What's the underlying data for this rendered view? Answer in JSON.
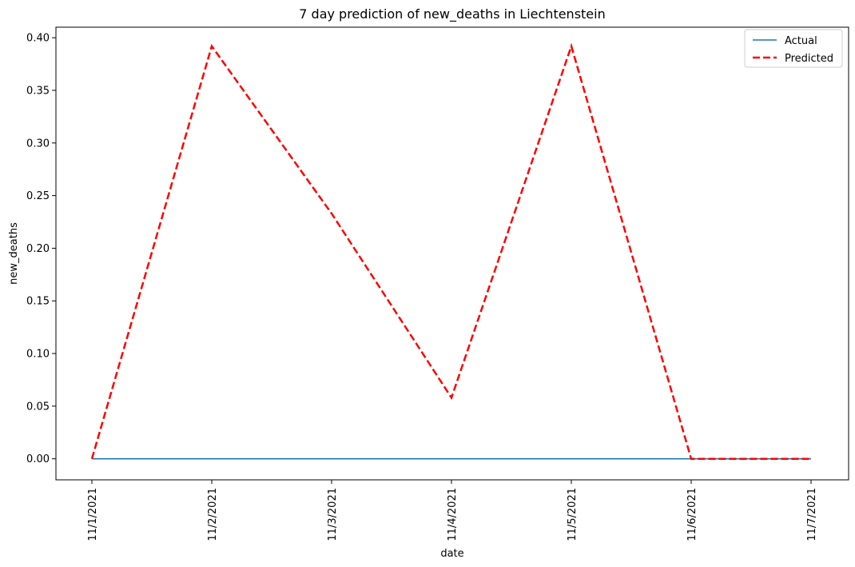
{
  "chart_data": {
    "type": "line",
    "title": "7 day prediction of new_deaths in Liechtenstein",
    "xlabel": "date",
    "ylabel": "new_deaths",
    "x": [
      "11/1/2021",
      "11/2/2021",
      "11/3/2021",
      "11/4/2021",
      "11/5/2021",
      "11/6/2021",
      "11/7/2021"
    ],
    "yticks": [
      "0.00",
      "0.05",
      "0.10",
      "0.15",
      "0.20",
      "0.25",
      "0.30",
      "0.35",
      "0.40"
    ],
    "ylim": [
      -0.02,
      0.41
    ],
    "grid": false,
    "legend_position": "top-right",
    "series": [
      {
        "name": "Actual",
        "values": [
          0,
          0,
          0,
          0,
          0,
          0,
          0
        ],
        "color": "#1f77b4",
        "style": "solid"
      },
      {
        "name": "Predicted",
        "values": [
          0.0,
          0.392,
          0.233,
          0.058,
          0.392,
          0.0,
          0.0
        ],
        "color": "#ff0000",
        "style": "dashed"
      }
    ]
  }
}
